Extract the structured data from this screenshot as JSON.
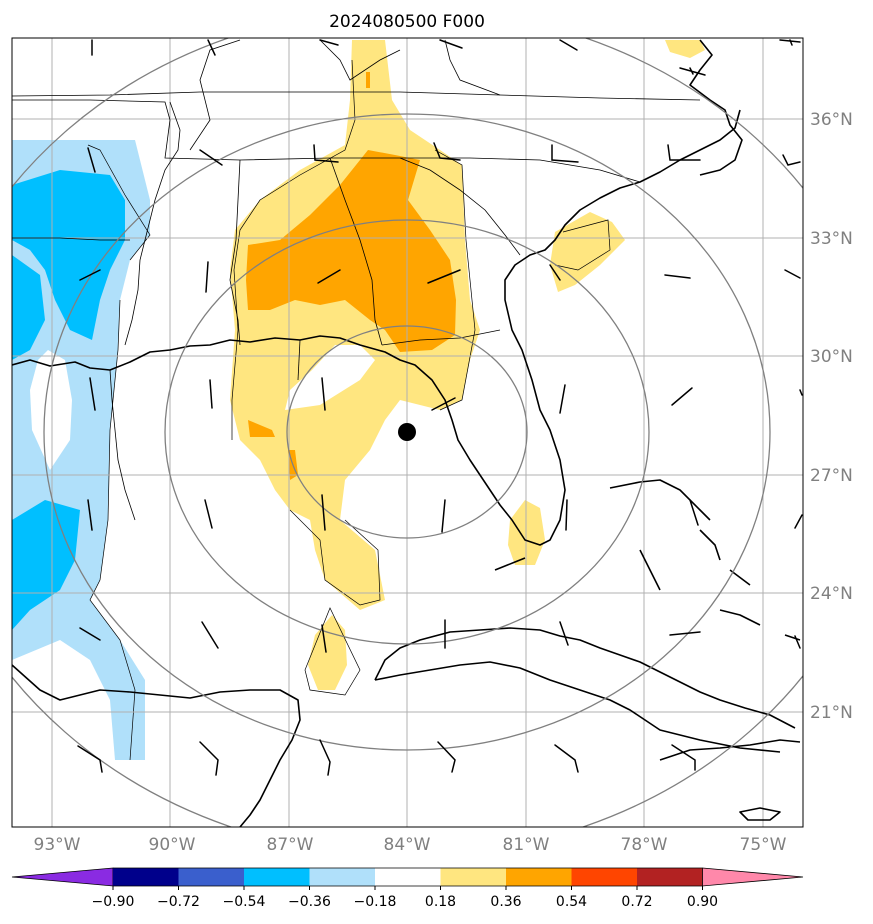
{
  "title": "2024080500 F000",
  "lon_labels": [
    "93°W",
    "90°W",
    "87°W",
    "84°W",
    "81°W",
    "78°W",
    "75°W"
  ],
  "lat_labels": [
    "36°N",
    "33°N",
    "30°N",
    "27°N",
    "24°N",
    "21°N"
  ],
  "colorbar": {
    "ticks": [
      "−0.90",
      "−0.72",
      "−0.54",
      "−0.36",
      "−0.18",
      "0.18",
      "0.36",
      "0.54",
      "0.72",
      "0.90"
    ],
    "colors": [
      "#8a2be2",
      "#00008b",
      "#3a5fcd",
      "#00bfff",
      "#b0e0fa",
      "#ffffff",
      "#ffe680",
      "#ffa500",
      "#ff4500",
      "#b22222",
      "#ff88aa"
    ]
  },
  "colors": {
    "light_blue": "#b0e0fa",
    "blue": "#00bfff",
    "light_yellow": "#ffe680",
    "orange": "#ffa500",
    "range_ring": "#808080",
    "grid": "#b0b0b0",
    "tick_label": "#808080"
  },
  "center_marker": "storm-center-icon"
}
